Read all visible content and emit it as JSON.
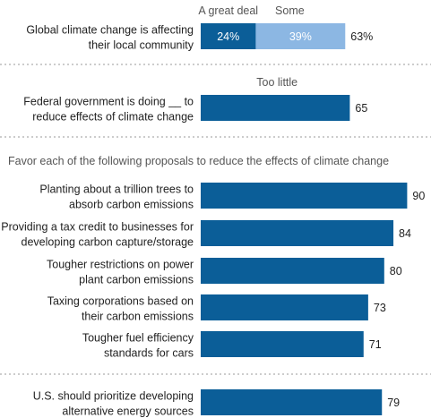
{
  "chart_data": [
    {
      "type": "bar",
      "stacked": true,
      "categories": [
        "Global climate change is affecting their local community"
      ],
      "series": [
        {
          "name": "A great deal",
          "values": [
            24
          ],
          "labels": [
            "24%"
          ],
          "color": "#0b5e98"
        },
        {
          "name": "Some",
          "values": [
            39
          ],
          "labels": [
            "39%"
          ],
          "color": "#8cb7e3"
        }
      ],
      "totals": [
        63
      ],
      "total_labels": [
        "63%"
      ],
      "xlim": [
        0,
        100
      ]
    },
    {
      "type": "bar",
      "categories": [
        "Federal government is doing __ to reduce effects of climate change"
      ],
      "series": [
        {
          "name": "Too little",
          "values": [
            65
          ],
          "color": "#0b5e98"
        }
      ],
      "xlim": [
        0,
        100
      ]
    },
    {
      "type": "bar",
      "title": "Favor each of the following proposals to reduce the effects of climate change",
      "categories": [
        "Planting about a trillion trees to absorb carbon emissions",
        "Providing a tax credit to businesses for developing carbon capture/storage",
        "Tougher restrictions on power plant carbon emissions",
        "Taxing corporations based on their carbon emissions",
        "Tougher fuel efficiency standards for cars"
      ],
      "values": [
        90,
        84,
        80,
        73,
        71
      ],
      "color": "#0b5e98",
      "xlim": [
        0,
        100
      ]
    },
    {
      "type": "bar",
      "categories": [
        "U.S. should prioritize developing alternative energy sources"
      ],
      "values": [
        79
      ],
      "color": "#0b5e98",
      "xlim": [
        0,
        100
      ]
    }
  ],
  "labels": {
    "row1": [
      "Global climate change is affecting",
      "their local community"
    ],
    "row2": [
      "Federal government is doing __ to",
      "reduce effects of climate change"
    ],
    "section": "Favor each of the following proposals to reduce the effects of climate change",
    "proposals": [
      [
        "Planting about a trillion trees to",
        "absorb carbon emissions"
      ],
      [
        "Providing a tax credit to businesses for",
        "developing carbon capture/storage"
      ],
      [
        "Tougher restrictions on power",
        "plant carbon emissions"
      ],
      [
        "Taxing corporations based on",
        "their carbon emissions"
      ],
      [
        "Tougher fuel efficiency",
        "standards for cars"
      ]
    ],
    "last": [
      "U.S. should prioritize developing",
      "alternative energy sources"
    ]
  }
}
